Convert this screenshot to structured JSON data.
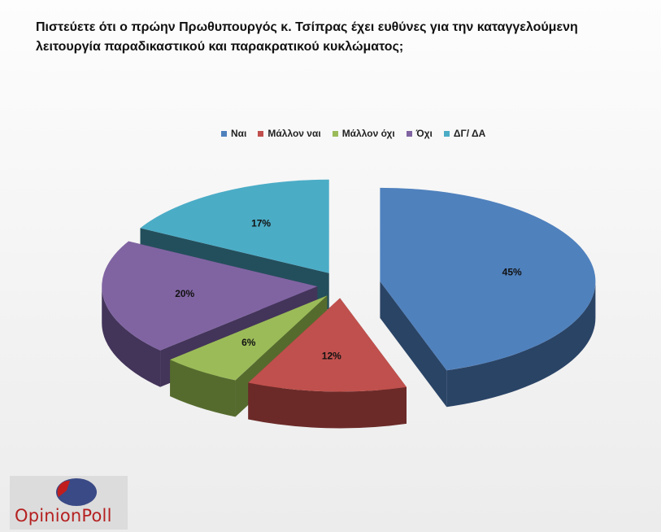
{
  "title_line1": "Πιστεύετε ότι ο πρώην Πρωθυπουργός κ. Τσίπρας  έχει ευθύνες για την καταγγελούμενη",
  "title_line2": "λειτουργία παραδικαστικού και παρακρατικού κυκλώματος;",
  "logo": {
    "text": "OpinionPoll"
  },
  "chart_data": {
    "type": "pie",
    "style": "3d-exploded",
    "legend_position": "top",
    "categories": [
      "Ναι",
      "Μάλλον ναι",
      "Μάλλον όχι",
      "Όχι",
      "ΔΓ/ ΔΑ"
    ],
    "values": [
      45,
      12,
      6,
      20,
      17
    ],
    "data_labels": [
      "45%",
      "12%",
      "6%",
      "20%",
      "17%"
    ],
    "colors": [
      "#4f81bd",
      "#c0504d",
      "#9bbb59",
      "#8064a2",
      "#4bacc6"
    ],
    "side_colors": [
      "#2a4466",
      "#6b2a28",
      "#556b2e",
      "#43345a",
      "#234f5c"
    ]
  }
}
